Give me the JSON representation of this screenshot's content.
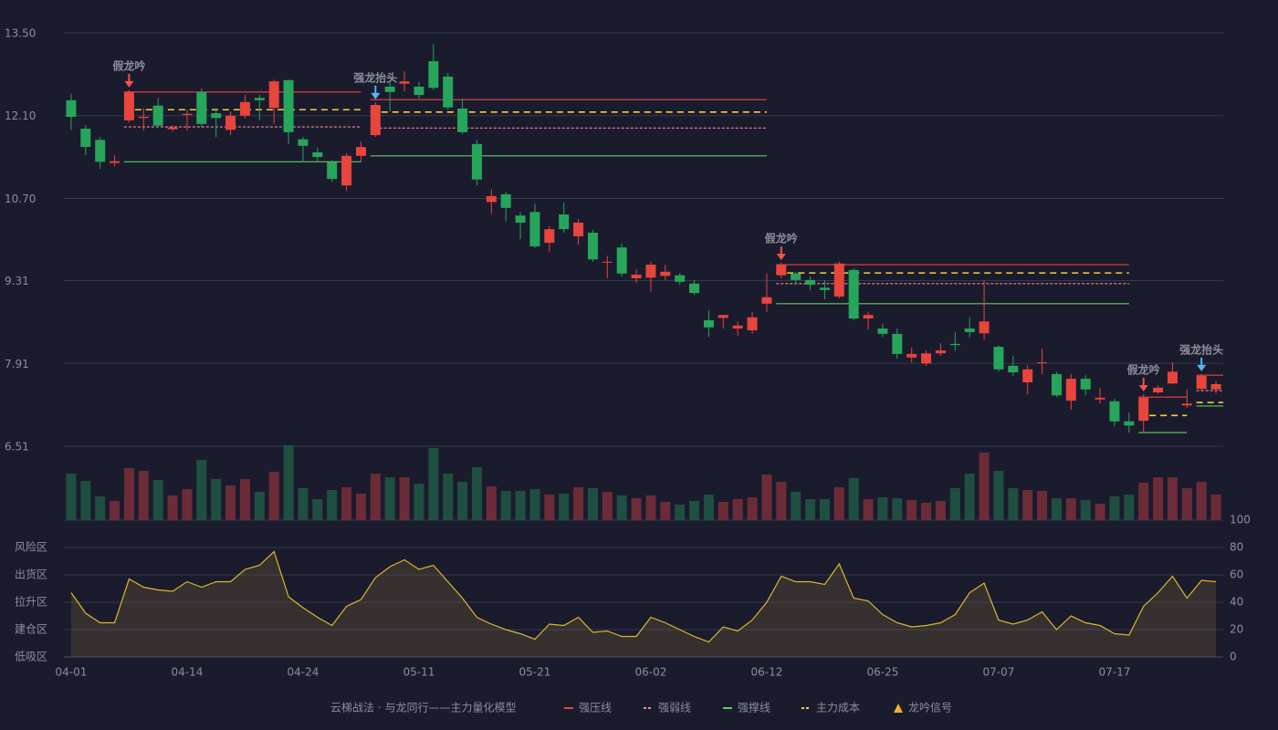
{
  "chart_data": [
    {
      "type": "candlestick",
      "categories": [
        "04-01",
        null,
        null,
        null,
        null,
        null,
        null,
        null,
        "04-14",
        null,
        null,
        null,
        null,
        null,
        null,
        null,
        "04-24",
        null,
        null,
        null,
        null,
        null,
        null,
        null,
        "05-11",
        null,
        null,
        null,
        null,
        null,
        null,
        null,
        "05-21",
        null,
        null,
        null,
        null,
        null,
        null,
        null,
        "06-02",
        null,
        null,
        null,
        null,
        null,
        null,
        null,
        "06-12",
        null,
        null,
        null,
        null,
        null,
        null,
        null,
        "06-25",
        null,
        null,
        null,
        null,
        null,
        null,
        null,
        "07-07",
        null,
        null,
        null,
        null,
        null,
        null,
        null,
        "07-17",
        null,
        null,
        null,
        null,
        null,
        null,
        null
      ],
      "open": [
        12.36,
        11.88,
        11.69,
        11.3,
        12.02,
        12.06,
        12.27,
        11.87,
        12.11,
        12.5,
        12.14,
        11.86,
        12.1,
        12.4,
        12.23,
        12.7,
        11.7,
        11.48,
        11.31,
        10.92,
        11.42,
        11.77,
        12.59,
        12.64,
        12.59,
        13.02,
        12.76,
        12.22,
        11.62,
        10.64,
        10.77,
        10.41,
        10.47,
        9.95,
        10.43,
        10.06,
        10.12,
        9.62,
        9.87,
        9.35,
        9.36,
        9.39,
        9.4,
        9.26,
        8.64,
        8.68,
        8.5,
        8.47,
        8.92,
        9.4,
        9.43,
        9.32,
        9.19,
        9.04,
        9.49,
        8.67,
        8.5,
        8.41,
        8.01,
        7.91,
        8.08,
        8.24,
        8.5,
        8.42,
        8.19,
        7.87,
        7.59,
        7.92,
        7.73,
        7.28,
        7.65,
        7.3,
        7.27,
        6.93,
        6.94,
        7.42,
        7.57,
        7.2,
        7.48,
        7.47
      ],
      "high": [
        12.47,
        11.94,
        11.74,
        11.43,
        12.53,
        12.23,
        12.4,
        11.93,
        12.2,
        12.56,
        12.23,
        12.17,
        12.45,
        12.45,
        12.71,
        12.71,
        11.74,
        11.56,
        11.35,
        11.46,
        11.66,
        12.33,
        12.67,
        12.85,
        12.67,
        13.31,
        12.82,
        12.39,
        11.69,
        10.85,
        10.81,
        10.47,
        10.61,
        10.23,
        10.63,
        10.35,
        10.17,
        9.73,
        9.94,
        9.5,
        9.63,
        9.58,
        9.44,
        9.32,
        8.81,
        8.73,
        8.62,
        8.78,
        9.43,
        9.61,
        9.46,
        9.38,
        9.32,
        9.63,
        9.52,
        8.78,
        8.58,
        8.5,
        8.18,
        8.13,
        8.25,
        8.44,
        8.69,
        9.32,
        8.22,
        8.04,
        7.88,
        8.16,
        7.77,
        7.73,
        7.71,
        7.5,
        7.31,
        7.08,
        7.39,
        7.54,
        7.93,
        7.47,
        7.73,
        7.61
      ],
      "low": [
        11.86,
        11.43,
        11.2,
        11.24,
        11.98,
        11.85,
        11.9,
        11.83,
        11.85,
        11.9,
        11.74,
        11.77,
        12.05,
        12.02,
        11.96,
        11.62,
        11.32,
        11.32,
        10.98,
        10.83,
        11.31,
        11.74,
        12.17,
        12.51,
        12.39,
        12.54,
        12.2,
        11.79,
        10.92,
        10.44,
        10.31,
        10.01,
        9.86,
        9.8,
        10.12,
        9.92,
        9.63,
        9.35,
        9.38,
        9.27,
        9.12,
        9.32,
        9.24,
        9.07,
        8.36,
        8.5,
        8.38,
        8.41,
        8.78,
        9.35,
        9.24,
        9.15,
        8.99,
        9.01,
        8.64,
        8.48,
        8.35,
        7.99,
        7.93,
        7.87,
        8.04,
        8.12,
        8.35,
        8.31,
        7.77,
        7.7,
        7.39,
        7.73,
        7.34,
        7.13,
        7.37,
        7.23,
        6.85,
        6.74,
        6.74,
        7.4,
        7.56,
        7.16,
        7.45,
        7.4
      ],
      "close": [
        12.08,
        11.57,
        11.32,
        11.33,
        12.5,
        12.08,
        11.93,
        11.9,
        12.13,
        11.96,
        12.06,
        12.1,
        12.33,
        12.36,
        12.68,
        11.82,
        11.59,
        11.4,
        11.03,
        11.42,
        11.57,
        12.28,
        12.5,
        12.68,
        12.45,
        12.57,
        12.24,
        11.82,
        11.02,
        10.74,
        10.54,
        10.29,
        9.89,
        10.18,
        10.18,
        10.29,
        9.67,
        9.63,
        9.43,
        9.41,
        9.58,
        9.46,
        9.29,
        9.1,
        8.52,
        8.73,
        8.55,
        8.69,
        9.03,
        9.58,
        9.32,
        9.24,
        9.15,
        9.6,
        8.67,
        8.73,
        8.41,
        8.07,
        8.07,
        8.08,
        8.13,
        8.22,
        8.44,
        8.62,
        7.81,
        7.76,
        7.81,
        7.93,
        7.37,
        7.65,
        7.47,
        7.33,
        6.93,
        6.86,
        7.33,
        7.5,
        7.77,
        7.23,
        7.7,
        7.56
      ],
      "volume": [
        51,
        43,
        26,
        21,
        57,
        54,
        44,
        27,
        34,
        66,
        45,
        38,
        45,
        31,
        53,
        82,
        35,
        23,
        33,
        36,
        29,
        51,
        47,
        47,
        40,
        79,
        51,
        42,
        58,
        37,
        32,
        32,
        34,
        28,
        29,
        36,
        35,
        31,
        27,
        24,
        27,
        20,
        17,
        21,
        28,
        20,
        23,
        25,
        50,
        42,
        31,
        23,
        23,
        36,
        46,
        23,
        25,
        24,
        22,
        19,
        21,
        35,
        51,
        74,
        54,
        35,
        33,
        32,
        24,
        24,
        22,
        18,
        26,
        28,
        41,
        47,
        47,
        35,
        42,
        28
      ],
      "up_color": "#e8453c",
      "down_color": "#26a65b",
      "volume_up_color": "#6b2c38",
      "volume_down_color": "#1f4f40",
      "ylim": [
        6.51,
        13.5
      ],
      "yticks": [
        6.51,
        7.91,
        9.31,
        {
          "value": 10.7,
          "label": "10.70"
        },
        {
          "value": 12.1,
          "label": "12.10"
        },
        {
          "value": 13.5,
          "label": "13.50"
        }
      ],
      "grid": true,
      "levels": [
        {
          "name": "强压线",
          "color": "#e8453c",
          "dashed": false,
          "segments": [
            {
              "from": 4,
              "to": 20,
              "value": 12.5
            },
            {
              "from": 21,
              "to": 48,
              "value": 12.37
            },
            {
              "from": 49,
              "to": 73,
              "value": 9.58
            },
            {
              "from": 74,
              "to": 77,
              "value": 7.34
            },
            {
              "from": 78,
              "to": 79,
              "value": 7.71
            }
          ]
        },
        {
          "name": "强弱线",
          "color": "#f08a94",
          "dashed": true,
          "segments": [
            {
              "from": 4,
              "to": 20,
              "value": 11.91
            },
            {
              "from": 21,
              "to": 48,
              "value": 11.89
            },
            {
              "from": 49,
              "to": 73,
              "value": 9.26
            },
            {
              "from": 78,
              "to": 79,
              "value": 7.45
            }
          ]
        },
        {
          "name": "强撑线",
          "color": "#5ccf5c",
          "dashed": false,
          "segments": [
            {
              "from": 4,
              "to": 20,
              "value": 11.32
            },
            {
              "from": 21,
              "to": 48,
              "value": 11.42
            },
            {
              "from": 49,
              "to": 73,
              "value": 8.92
            },
            {
              "from": 74,
              "to": 77,
              "value": 6.74
            },
            {
              "from": 78,
              "to": 79,
              "value": 7.19
            }
          ]
        },
        {
          "name": "主力成本",
          "color": "#f5d033",
          "dashed": true,
          "segments": [
            {
              "from": 4,
              "to": 20,
              "value": 12.2
            },
            {
              "from": 21,
              "to": 48,
              "value": 12.16
            },
            {
              "from": 49,
              "to": 73,
              "value": 9.44
            },
            {
              "from": 74,
              "to": 77,
              "value": 7.03
            },
            {
              "from": 78,
              "to": 79,
              "value": 7.25
            }
          ]
        }
      ],
      "signals": [
        {
          "index": 4,
          "label": "假龙吟",
          "color": "#f0554a"
        },
        {
          "index": 21,
          "label": "强龙抬头",
          "color": "#52b6f2"
        },
        {
          "index": 49,
          "label": "假龙吟",
          "color": "#f0554a"
        },
        {
          "index": 74,
          "label": "假龙吟",
          "color": "#f0554a"
        },
        {
          "index": 78,
          "label": "强龙抬头",
          "color": "#52b6f2"
        }
      ],
      "legend_title": "云梯战法 · 与龙同行——主力量化模型",
      "signal_legend": {
        "name": "龙吟信号",
        "color": "#f0b030"
      }
    },
    {
      "type": "area",
      "values": [
        47,
        32,
        25,
        25,
        57,
        51,
        49,
        48,
        55,
        51,
        55,
        55,
        64,
        67,
        77,
        44,
        36,
        29,
        23,
        37,
        42,
        58,
        66,
        71,
        64,
        67,
        55,
        43,
        29,
        24,
        20,
        17,
        13,
        24,
        23,
        29,
        18,
        19,
        15,
        15,
        29,
        25,
        20,
        15,
        11,
        22,
        19,
        27,
        40,
        59,
        55,
        55,
        53,
        68,
        43,
        41,
        31,
        25,
        22,
        23,
        25,
        31,
        47,
        54,
        27,
        24,
        27,
        33,
        20,
        30,
        25,
        23,
        17,
        16,
        37,
        47,
        59,
        43,
        56,
        55
      ],
      "color": "#d8b92c",
      "ylim": [
        0,
        100
      ],
      "yticks": [
        0,
        20,
        40,
        60,
        80,
        100
      ],
      "ytick_colors": [
        "#e84545",
        "#f07a30",
        "#4aa3f0",
        "#e040e0",
        "#f0a020",
        "#4cd964"
      ],
      "zones": [
        {
          "value": 80,
          "label": "风险区",
          "color": "#e8a33c"
        },
        {
          "value": 60,
          "label": "出货区",
          "color": "#e040e0"
        },
        {
          "value": 40,
          "label": "拉升区",
          "color": "#4aa3f0"
        },
        {
          "value": 20,
          "label": "建仓区",
          "color": "#f0503c"
        },
        {
          "value": 0,
          "label": "低吸区",
          "color": "#e84545"
        }
      ]
    }
  ]
}
